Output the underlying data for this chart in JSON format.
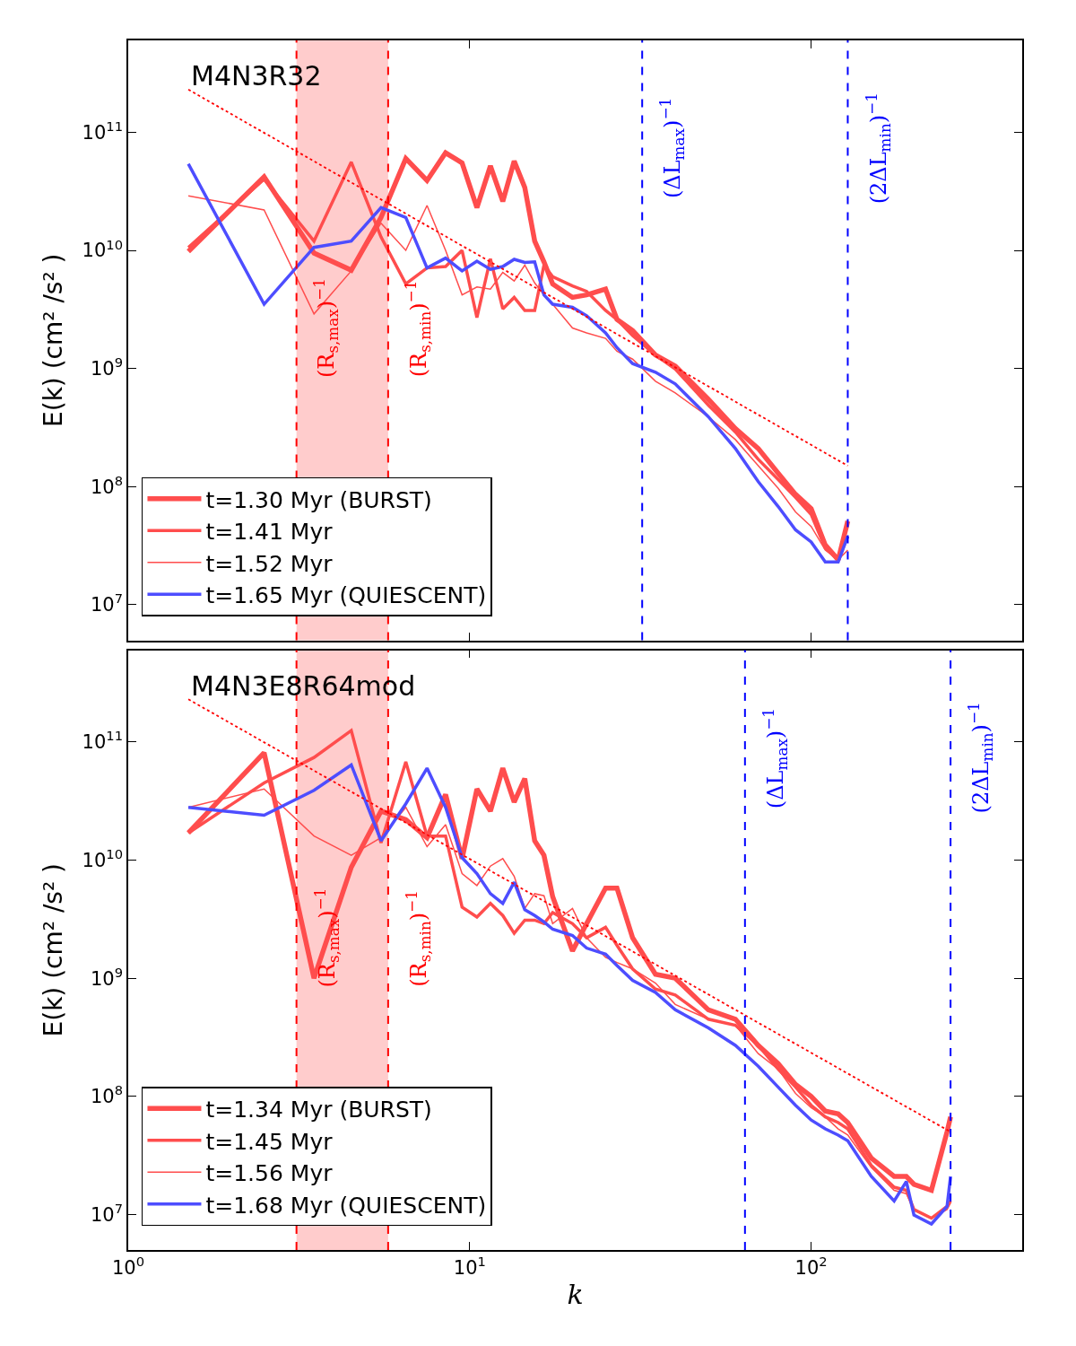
{
  "chart_data": [
    {
      "type": "line",
      "title": "M4N3R32",
      "ylabel": "E(k) (cm² /s² )",
      "log": "xy",
      "legend": "bottom left",
      "tick_labels": "y",
      "xlim": [
        1,
        415
      ],
      "ylim": [
        5000000,
        600000000000
      ],
      "xticks": [
        {
          "value": 1,
          "label": "10$^{0}$"
        },
        {
          "value": 10,
          "label": "10$^{1}$"
        },
        {
          "value": 100,
          "label": "10$^{2}$"
        }
      ],
      "yticks": [
        {
          "value": 10000000,
          "label": "10$^{7}$"
        },
        {
          "value": 100000000,
          "label": "10$^{8}$"
        },
        {
          "value": 1000000000,
          "label": "10$^{9}$"
        },
        {
          "value": 10000000000,
          "label": "10$^{10}$"
        },
        {
          "value": 100000000000,
          "label": "10$^{11}$"
        }
      ],
      "x": [
        1.5,
        2.5,
        3.5,
        4.5,
        5.5,
        6.5,
        7.5,
        8.5,
        9.5,
        10.5,
        11.5,
        12.5,
        13.5,
        14.5,
        15.5,
        16.5,
        17.5,
        20,
        22,
        25,
        27,
        30,
        35,
        40,
        50,
        60,
        70,
        80,
        90,
        100,
        110,
        120,
        128
      ],
      "series": [
        {
          "name": "t=1.30 Myr (BURST)",
          "color": "#ff4d4d",
          "values": [
            9800000000.0,
            42000000000.0,
            9500000000.0,
            6800000000.0,
            19000000000.0,
            60000000000.0,
            39000000000.0,
            67000000000.0,
            55000000000.0,
            23000000000.0,
            52000000000.0,
            26000000000.0,
            57000000000.0,
            34000000000.0,
            12000000000.0,
            8000000000.0,
            5200000000.0,
            4000000000.0,
            4200000000.0,
            4700000000.0,
            2600000000.0,
            2100000000.0,
            1300000000.0,
            1050000000.0,
            550000000.0,
            310000000.0,
            210000000.0,
            130000000.0,
            86000000.0,
            65000000.0,
            32000000.0,
            24000000.0,
            51000000.0
          ]
        },
        {
          "name": "t=1.41 Myr",
          "color": "#ff4d4d",
          "values": [
            10600000000.0,
            40000000000.0,
            12000000000.0,
            56000000000.0,
            13000000000.0,
            5200000000.0,
            7100000000.0,
            7300000000.0,
            10000000000.0,
            2700000000.0,
            8500000000.0,
            3200000000.0,
            4000000000.0,
            3100000000.0,
            3100000000.0,
            7500000000.0,
            6000000000.0,
            5000000000.0,
            4500000000.0,
            3100000000.0,
            2600000000.0,
            1900000000.0,
            1300000000.0,
            990000000.0,
            490000000.0,
            290000000.0,
            170000000.0,
            115000000.0,
            81000000.0,
            58000000.0,
            30000000.0,
            24000000.0,
            38000000.0
          ]
        },
        {
          "name": "t=1.52 Myr",
          "color": "#ff4d4d",
          "values": [
            29000000000.0,
            22000000000.0,
            2900000000.0,
            6700000000.0,
            17000000000.0,
            10000000000.0,
            24000000000.0,
            10000000000.0,
            4200000000.0,
            4900000000.0,
            4700000000.0,
            6500000000.0,
            5500000000.0,
            7500000000.0,
            5300000000.0,
            4200000000.0,
            3500000000.0,
            2200000000.0,
            2000000000.0,
            1800000000.0,
            1400000000.0,
            1200000000.0,
            780000000.0,
            620000000.0,
            390000000.0,
            250000000.0,
            150000000.0,
            97000000.0,
            61000000.0,
            46000000.0,
            29000000.0,
            24000000.0,
            29000000.0
          ]
        },
        {
          "name": "t=1.65 Myr (QUIESCENT)",
          "color": "#4d4dff",
          "values": [
            54000000000.0,
            3500000000.0,
            10600000000.0,
            12000000000.0,
            23000000000.0,
            19000000000.0,
            7100000000.0,
            8600000000.0,
            6700000000.0,
            8100000000.0,
            6900000000.0,
            7300000000.0,
            8400000000.0,
            7900000000.0,
            8000000000.0,
            4200000000.0,
            3500000000.0,
            3300000000.0,
            2800000000.0,
            2000000000.0,
            1500000000.0,
            1100000000.0,
            930000000.0,
            740000000.0,
            390000000.0,
            210000000.0,
            110000000.0,
            68000000.0,
            43000000.0,
            34000000.0,
            23000000.0,
            23000000.0,
            38000000.0
          ]
        },
        {
          "x": [
            1.5,
            128
          ],
          "color": "#ff0000",
          "line_style": "dotted",
          "values": [
            230000000000.0,
            150000000.0
          ]
        }
      ],
      "bands": [
        {
          "axis": "x",
          "from": 3.11,
          "to": 5.77,
          "color": "#ffcccc"
        }
      ],
      "ref_lines": [
        {
          "axis": "x",
          "value": 3.11,
          "label": "(R$_{s,max}$)$^{−1}$",
          "color": "#ff0000",
          "line_style": "dashed"
        },
        {
          "axis": "x",
          "value": 5.77,
          "label": "(R$_{s,min}$)$^{−1}$",
          "color": "#ff0000",
          "line_style": "dashed"
        },
        {
          "axis": "x",
          "value": 32,
          "label": "(ΔL$_{max}$)$^{−1}$",
          "color": "#0000ff",
          "line_style": "dashed"
        },
        {
          "axis": "x",
          "value": 128,
          "label": "(2ΔL$_{min}$)$^{−1}$",
          "color": "#0000ff",
          "line_style": "dashed"
        }
      ]
    },
    {
      "type": "line",
      "title": "M4N3E8R64mod",
      "xlabel": "k",
      "ylabel": "E(k) (cm² /s² )",
      "log": "xy",
      "legend": "bottom left",
      "xlim": [
        1,
        415
      ],
      "ylim": [
        5000000,
        600000000000
      ],
      "xticks": [
        {
          "value": 1,
          "label": "10$^{0}$"
        },
        {
          "value": 10,
          "label": "10$^{1}$"
        },
        {
          "value": 100,
          "label": "10$^{2}$"
        }
      ],
      "yticks": [
        {
          "value": 10000000,
          "label": "10$^{7}$"
        },
        {
          "value": 100000000,
          "label": "10$^{8}$"
        },
        {
          "value": 1000000000,
          "label": "10$^{9}$"
        },
        {
          "value": 10000000000,
          "label": "10$^{10}$"
        },
        {
          "value": 100000000000,
          "label": "10$^{11}$"
        }
      ],
      "x": [
        1.5,
        2.5,
        3.5,
        4.5,
        5.5,
        6.5,
        7.5,
        8.5,
        9.5,
        10.5,
        11.5,
        12.5,
        13.5,
        14.5,
        15.5,
        16.5,
        17.5,
        20,
        22,
        25,
        27,
        30,
        35,
        40,
        50,
        60,
        70,
        80,
        90,
        100,
        110,
        120,
        128,
        150,
        175,
        190,
        200,
        225,
        250,
        256
      ],
      "series": [
        {
          "name": "t=1.34 Myr (BURST)",
          "color": "#ff4d4d",
          "values": [
            17000000000.0,
            81000000000.0,
            1000000000.0,
            8700000000.0,
            26000000000.0,
            22000000000.0,
            15500000000.0,
            36000000000.0,
            10300000000.0,
            40000000000.0,
            26000000000.0,
            60000000000.0,
            31000000000.0,
            49000000000.0,
            14600000000.0,
            11000000000.0,
            4900000000.0,
            1700000000.0,
            2900000000.0,
            5800000000.0,
            5800000000.0,
            2200000000.0,
            1080000000.0,
            1000000000.0,
            540000000.0,
            450000000.0,
            270000000.0,
            190000000.0,
            126000000.0,
            100000000.0,
            75000000.0,
            71000000.0,
            60000000.0,
            30000000.0,
            21000000.0,
            21000000.0,
            18000000.0,
            16000000.0,
            50000000.0,
            67000000.0
          ]
        },
        {
          "name": "t=1.45 Myr",
          "color": "#ff4d4d",
          "values": [
            17000000000.0,
            45000000000.0,
            74000000000.0,
            125000000000.0,
            14000000000.0,
            68000000000.0,
            16000000000.0,
            16000000000.0,
            4000000000.0,
            3300000000.0,
            4300000000.0,
            3400000000.0,
            2400000000.0,
            3100000000.0,
            3100000000.0,
            2900000000.0,
            3600000000.0,
            2900000000.0,
            2200000000.0,
            2700000000.0,
            1900000000.0,
            1200000000.0,
            810000000.0,
            720000000.0,
            450000000.0,
            400000000.0,
            270000000.0,
            170000000.0,
            120000000.0,
            84000000.0,
            67000000.0,
            60000000.0,
            53000000.0,
            26000000.0,
            17000000.0,
            16000000.0,
            11000000.0,
            9300000.0,
            11700000.0,
            13000000.0
          ]
        },
        {
          "name": "t=1.56 Myr",
          "color": "#ff4d4d",
          "values": [
            28000000000.0,
            40000000000.0,
            16000000000.0,
            11000000000.0,
            15500000000.0,
            28000000000.0,
            13000000000.0,
            20000000000.0,
            7700000000.0,
            6100000000.0,
            8900000000.0,
            10300000000.0,
            7300000000.0,
            3900000000.0,
            5200000000.0,
            5000000000.0,
            2900000000.0,
            3900000000.0,
            2200000000.0,
            1500000000.0,
            1360000000.0,
            1200000000.0,
            910000000.0,
            600000000.0,
            450000000.0,
            400000000.0,
            230000000.0,
            170000000.0,
            106000000.0,
            80000000.0,
            67000000.0,
            53000000.0,
            47000000.0,
            25000000.0,
            16000000.0,
            15000000.0,
            11000000.0,
            9300000.0,
            11000000.0,
            12500000.0
          ]
        },
        {
          "name": "t=1.68 Myr (QUIESCENT)",
          "color": "#4d4dff",
          "values": [
            28000000000.0,
            24000000000.0,
            39000000000.0,
            64000000000.0,
            14600000000.0,
            30000000000.0,
            60000000000.0,
            28000000000.0,
            10500000000.0,
            7700000000.0,
            5200000000.0,
            4300000000.0,
            6500000000.0,
            3800000000.0,
            3400000000.0,
            3000000000.0,
            2600000000.0,
            2300000000.0,
            1800000000.0,
            1600000000.0,
            1280000000.0,
            960000000.0,
            760000000.0,
            540000000.0,
            380000000.0,
            270000000.0,
            180000000.0,
            120000000.0,
            84000000.0,
            63000000.0,
            53000000.0,
            47000000.0,
            42000000.0,
            21000000.0,
            13000000.0,
            19000000.0,
            9900000.0,
            8300000.0,
            11700000.0,
            21000000.0
          ]
        },
        {
          "x": [
            1.5,
            256
          ],
          "color": "#ff0000",
          "line_style": "dotted",
          "values": [
            230000000000.0,
            50000000.0
          ]
        }
      ],
      "bands": [
        {
          "axis": "x",
          "from": 3.11,
          "to": 5.77,
          "color": "#ffcccc"
        }
      ],
      "ref_lines": [
        {
          "axis": "x",
          "value": 3.11,
          "label": "(R$_{s,max}$)$^{−1}$",
          "color": "#ff0000",
          "line_style": "dashed"
        },
        {
          "axis": "x",
          "value": 5.77,
          "label": "(R$_{s,min}$)$^{−1}$",
          "color": "#ff0000",
          "line_style": "dashed"
        },
        {
          "axis": "x",
          "value": 64,
          "label": "(ΔL$_{max}$)$^{−1}$",
          "color": "#0000ff",
          "line_style": "dashed"
        },
        {
          "axis": "x",
          "value": 256,
          "label": "(2ΔL$_{min}$)$^{−1}$",
          "color": "#0000ff",
          "line_style": "dashed"
        }
      ]
    }
  ]
}
